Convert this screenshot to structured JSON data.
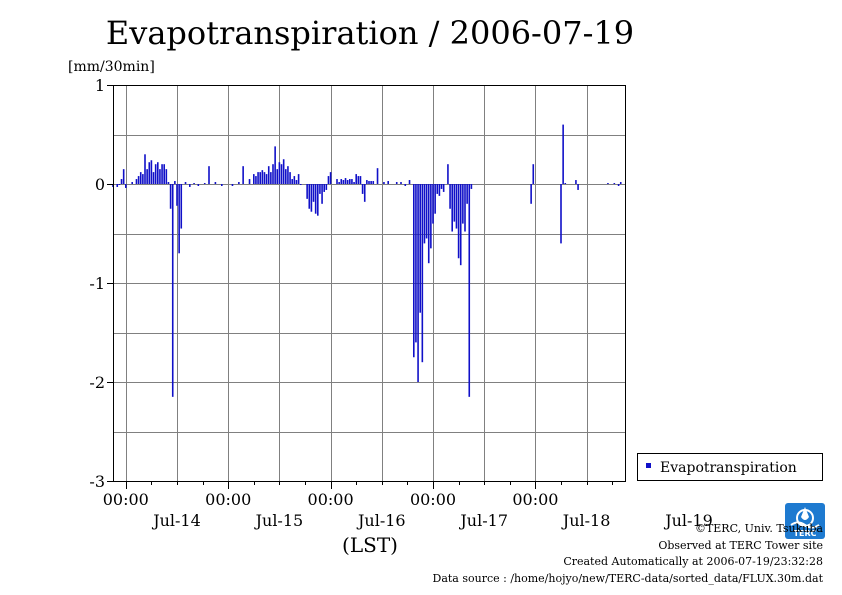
{
  "chart_data": {
    "type": "bar",
    "title": "Evapotranspiration / 2006-07-19",
    "ylabel": "[mm/30min]",
    "xlabel": "(LST)",
    "ylim": [
      -3,
      1
    ],
    "yticks": [
      1,
      0,
      -1,
      -2,
      -3
    ],
    "x_time_labels": [
      "00:00",
      "00:00",
      "00:00",
      "00:00",
      "00:00"
    ],
    "x_day_labels": [
      "Jul-14",
      "Jul-15",
      "Jul-16",
      "Jul-17",
      "Jul-18",
      "Jul-19"
    ],
    "grid": true,
    "bar_color": "#1010c8",
    "legend": {
      "placement": "right",
      "entries": [
        "Evapotranspiration"
      ]
    },
    "series": [
      {
        "name": "Evapotranspiration",
        "points": [
          [
            0.0,
            -0.03
          ],
          [
            1.0,
            -0.03
          ],
          [
            1.5,
            -0.01
          ],
          [
            2.0,
            0.05
          ],
          [
            2.5,
            0.15
          ],
          [
            3.0,
            -0.04
          ],
          [
            4.5,
            0.02
          ],
          [
            5.5,
            0.05
          ],
          [
            6.0,
            0.08
          ],
          [
            6.5,
            0.12
          ],
          [
            7.0,
            0.1
          ],
          [
            7.5,
            0.3
          ],
          [
            8.0,
            0.15
          ],
          [
            8.5,
            0.22
          ],
          [
            9.0,
            0.24
          ],
          [
            9.5,
            0.12
          ],
          [
            10.0,
            0.2
          ],
          [
            10.5,
            0.22
          ],
          [
            11.0,
            0.15
          ],
          [
            11.5,
            0.2
          ],
          [
            12.0,
            0.2
          ],
          [
            12.5,
            0.15
          ],
          [
            13.0,
            0.02
          ],
          [
            13.5,
            -0.25
          ],
          [
            14.0,
            -2.15
          ],
          [
            14.5,
            0.03
          ],
          [
            15.0,
            -0.22
          ],
          [
            15.5,
            -0.7
          ],
          [
            16.0,
            -0.45
          ],
          [
            17.0,
            0.02
          ],
          [
            18.0,
            -0.03
          ],
          [
            19.0,
            0.01
          ],
          [
            20.0,
            -0.02
          ],
          [
            21.5,
            0.01
          ],
          [
            22.5,
            0.18
          ],
          [
            24.0,
            0.02
          ],
          [
            25.5,
            -0.02
          ],
          [
            28.0,
            -0.02
          ],
          [
            29.5,
            0.02
          ],
          [
            30.5,
            0.18
          ],
          [
            32.0,
            0.05
          ],
          [
            33.0,
            0.1
          ],
          [
            33.5,
            0.08
          ],
          [
            34.0,
            0.12
          ],
          [
            34.5,
            0.12
          ],
          [
            35.0,
            0.14
          ],
          [
            35.5,
            0.12
          ],
          [
            36.0,
            0.1
          ],
          [
            36.5,
            0.18
          ],
          [
            37.0,
            0.12
          ],
          [
            37.5,
            0.2
          ],
          [
            38.0,
            0.38
          ],
          [
            38.5,
            0.15
          ],
          [
            39.0,
            0.22
          ],
          [
            39.5,
            0.2
          ],
          [
            40.0,
            0.25
          ],
          [
            40.5,
            0.15
          ],
          [
            41.0,
            0.18
          ],
          [
            41.5,
            0.12
          ],
          [
            42.0,
            0.05
          ],
          [
            42.5,
            0.08
          ],
          [
            43.0,
            0.04
          ],
          [
            43.5,
            0.1
          ],
          [
            44.0,
            -0.01
          ],
          [
            45.5,
            -0.15
          ],
          [
            46.0,
            -0.25
          ],
          [
            46.5,
            -0.28
          ],
          [
            47.0,
            -0.18
          ],
          [
            47.5,
            -0.3
          ],
          [
            48.0,
            -0.32
          ],
          [
            48.5,
            -0.1
          ],
          [
            49.0,
            -0.2
          ],
          [
            49.5,
            -0.08
          ],
          [
            50.0,
            -0.06
          ],
          [
            50.5,
            0.08
          ],
          [
            51.0,
            0.12
          ],
          [
            52.5,
            0.05
          ],
          [
            53.0,
            0.02
          ],
          [
            53.5,
            0.05
          ],
          [
            54.0,
            0.04
          ],
          [
            54.5,
            0.06
          ],
          [
            55.0,
            0.04
          ],
          [
            55.5,
            0.05
          ],
          [
            56.0,
            0.05
          ],
          [
            56.5,
            0.02
          ],
          [
            57.0,
            0.1
          ],
          [
            57.5,
            0.08
          ],
          [
            58.0,
            0.08
          ],
          [
            58.5,
            -0.1
          ],
          [
            59.0,
            -0.18
          ],
          [
            59.5,
            0.04
          ],
          [
            60.0,
            0.03
          ],
          [
            60.5,
            0.03
          ],
          [
            61.0,
            0.03
          ],
          [
            62.0,
            0.16
          ],
          [
            63.5,
            0.02
          ],
          [
            64.5,
            0.03
          ],
          [
            66.5,
            0.02
          ],
          [
            67.5,
            0.02
          ],
          [
            68.5,
            -0.02
          ],
          [
            69.5,
            0.04
          ],
          [
            70.5,
            -1.75
          ],
          [
            71.0,
            -1.6
          ],
          [
            71.5,
            -2.0
          ],
          [
            72.0,
            -1.3
          ],
          [
            72.5,
            -1.8
          ],
          [
            73.0,
            -0.6
          ],
          [
            73.5,
            -0.55
          ],
          [
            74.0,
            -0.8
          ],
          [
            74.5,
            -0.65
          ],
          [
            75.0,
            -0.4
          ],
          [
            75.5,
            -0.3
          ],
          [
            76.0,
            -0.1
          ],
          [
            76.5,
            -0.12
          ],
          [
            77.0,
            -0.05
          ],
          [
            77.5,
            -0.08
          ],
          [
            78.5,
            0.2
          ],
          [
            79.0,
            -0.25
          ],
          [
            79.5,
            -0.48
          ],
          [
            80.0,
            -0.38
          ],
          [
            80.5,
            -0.45
          ],
          [
            81.0,
            -0.75
          ],
          [
            81.5,
            -0.82
          ],
          [
            82.0,
            -0.4
          ],
          [
            82.5,
            -0.48
          ],
          [
            83.0,
            -0.2
          ],
          [
            83.5,
            -2.15
          ],
          [
            84.0,
            -0.05
          ],
          [
            98.0,
            -0.2
          ],
          [
            98.5,
            0.2
          ],
          [
            105.0,
            -0.6
          ],
          [
            105.5,
            0.6
          ],
          [
            106.0,
            0.01
          ],
          [
            108.5,
            0.04
          ],
          [
            109.0,
            -0.06
          ],
          [
            116.0,
            0.01
          ],
          [
            117.5,
            0.01
          ],
          [
            118.5,
            -0.02
          ],
          [
            119.0,
            0.02
          ]
        ]
      }
    ]
  },
  "credits": {
    "copyright": "©TERC, Univ. Tsukuba",
    "site": "Observed at TERC Tower site",
    "created": "Created Automatically at 2006-07-19/23:32:28",
    "source": "Data source : /home/hojyo/new/TERC-data/sorted_data/FLUX.30m.dat"
  },
  "logo": {
    "text": "TERC",
    "icon": "terc-logo-icon",
    "color": "#1e7ad0"
  }
}
